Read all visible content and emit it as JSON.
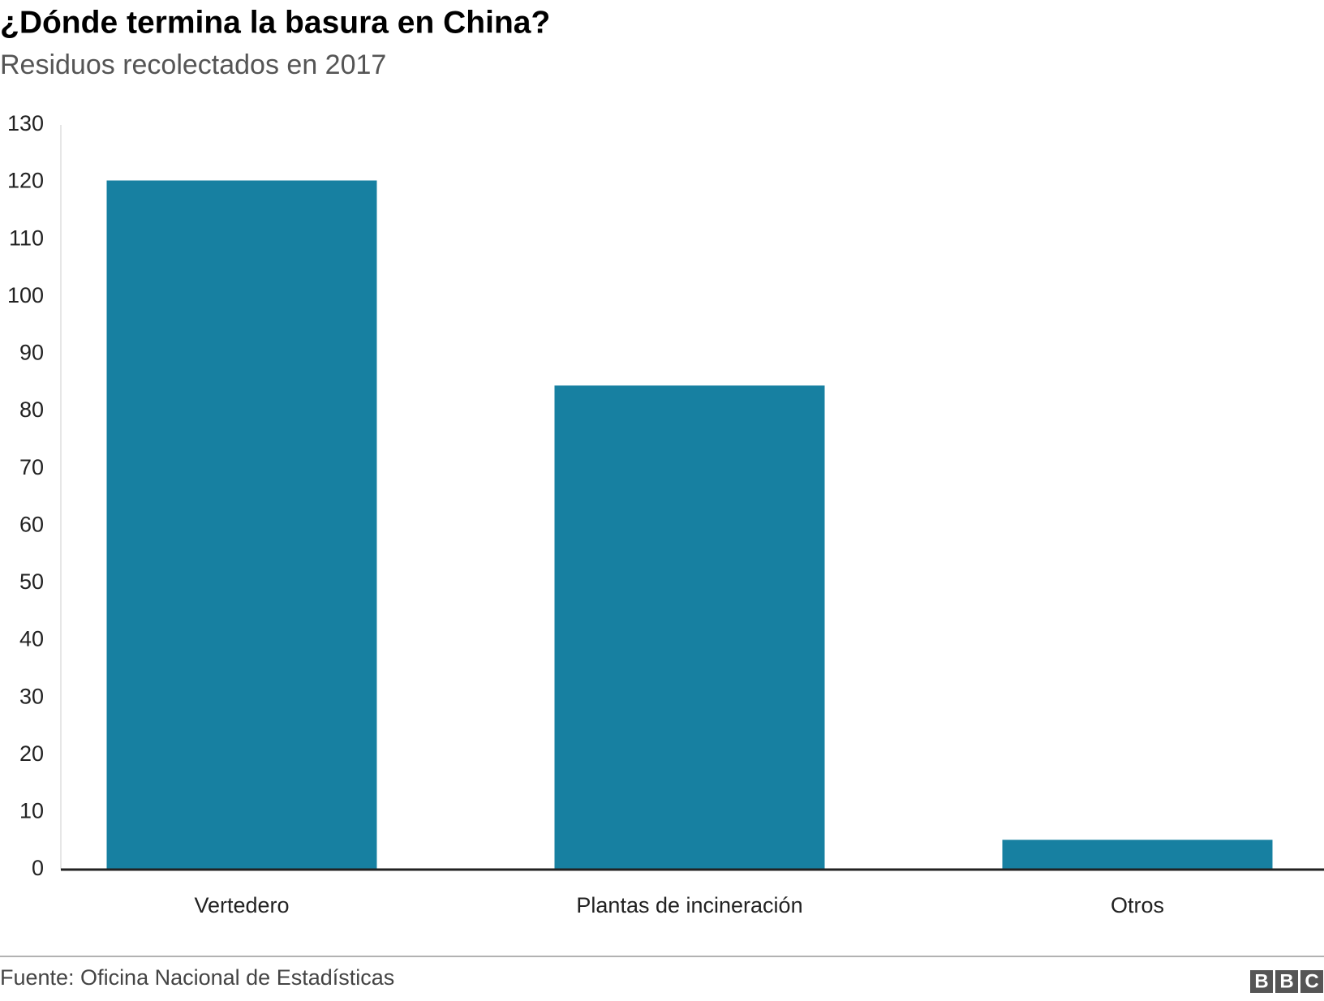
{
  "chart_data": {
    "type": "bar",
    "title": "¿Dónde termina la basura en China?",
    "subtitle": "Residuos recolectados en 2017",
    "categories": [
      "Vertedero",
      "Plantas de incineración",
      "Otros"
    ],
    "values": [
      120.3,
      84.5,
      5.2
    ],
    "color": "#1780a1",
    "ylim": [
      0,
      130
    ],
    "yticks": [
      0,
      10,
      20,
      30,
      40,
      50,
      60,
      70,
      80,
      90,
      100,
      110,
      120,
      130
    ],
    "grid": false,
    "source": "Fuente: Oficina Nacional de Estadísticas",
    "logo": [
      "B",
      "B",
      "C"
    ]
  }
}
